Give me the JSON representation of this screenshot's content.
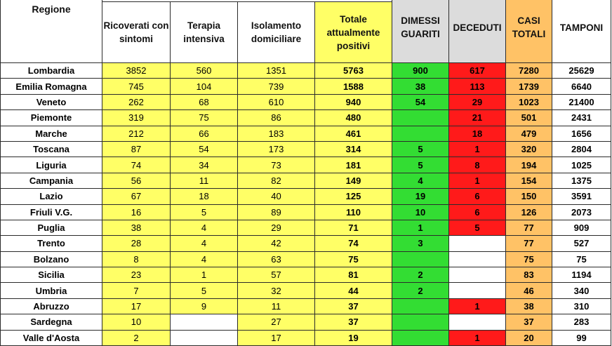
{
  "headers": {
    "regione": "Regione",
    "ricoverati": "Ricoverati con sintomi",
    "terapia": "Terapia intensiva",
    "isolamento": "Isolamento domiciliare",
    "totale": "Totale attualmente positivi",
    "dimessi": "DIMESSI GUARITI",
    "deceduti": "DECEDUTI",
    "casi": "CASI TOTALI",
    "tamponi": "TAMPONI"
  },
  "colors": {
    "yellow": "#ffff66",
    "green": "#33dd33",
    "red": "#ff1a1a",
    "orange": "#ffc266",
    "header_gray": "#dcdcdc"
  },
  "rows": [
    {
      "regione": "Lombardia",
      "ricoverati": "3852",
      "terapia": "560",
      "isolamento": "1351",
      "totale": "5763",
      "dimessi": "900",
      "deceduti": "617",
      "casi": "7280",
      "tamponi": "25629"
    },
    {
      "regione": "Emilia Romagna",
      "ricoverati": "745",
      "terapia": "104",
      "isolamento": "739",
      "totale": "1588",
      "dimessi": "38",
      "deceduti": "113",
      "casi": "1739",
      "tamponi": "6640"
    },
    {
      "regione": "Veneto",
      "ricoverati": "262",
      "terapia": "68",
      "isolamento": "610",
      "totale": "940",
      "dimessi": "54",
      "deceduti": "29",
      "casi": "1023",
      "tamponi": "21400"
    },
    {
      "regione": "Piemonte",
      "ricoverati": "319",
      "terapia": "75",
      "isolamento": "86",
      "totale": "480",
      "dimessi": "",
      "deceduti": "21",
      "casi": "501",
      "tamponi": "2431"
    },
    {
      "regione": "Marche",
      "ricoverati": "212",
      "terapia": "66",
      "isolamento": "183",
      "totale": "461",
      "dimessi": "",
      "deceduti": "18",
      "casi": "479",
      "tamponi": "1656"
    },
    {
      "regione": "Toscana",
      "ricoverati": "87",
      "terapia": "54",
      "isolamento": "173",
      "totale": "314",
      "dimessi": "5",
      "deceduti": "1",
      "casi": "320",
      "tamponi": "2804"
    },
    {
      "regione": "Liguria",
      "ricoverati": "74",
      "terapia": "34",
      "isolamento": "73",
      "totale": "181",
      "dimessi": "5",
      "deceduti": "8",
      "casi": "194",
      "tamponi": "1025"
    },
    {
      "regione": "Campania",
      "ricoverati": "56",
      "terapia": "11",
      "isolamento": "82",
      "totale": "149",
      "dimessi": "4",
      "deceduti": "1",
      "casi": "154",
      "tamponi": "1375"
    },
    {
      "regione": "Lazio",
      "ricoverati": "67",
      "terapia": "18",
      "isolamento": "40",
      "totale": "125",
      "dimessi": "19",
      "deceduti": "6",
      "casi": "150",
      "tamponi": "3591"
    },
    {
      "regione": "Friuli V.G.",
      "ricoverati": "16",
      "terapia": "5",
      "isolamento": "89",
      "totale": "110",
      "dimessi": "10",
      "deceduti": "6",
      "casi": "126",
      "tamponi": "2073"
    },
    {
      "regione": "Puglia",
      "ricoverati": "38",
      "terapia": "4",
      "isolamento": "29",
      "totale": "71",
      "dimessi": "1",
      "deceduti": "5",
      "casi": "77",
      "tamponi": "909"
    },
    {
      "regione": "Trento",
      "ricoverati": "28",
      "terapia": "4",
      "isolamento": "42",
      "totale": "74",
      "dimessi": "3",
      "deceduti": "",
      "casi": "77",
      "tamponi": "527"
    },
    {
      "regione": "Bolzano",
      "ricoverati": "8",
      "terapia": "4",
      "isolamento": "63",
      "totale": "75",
      "dimessi": "",
      "deceduti": "",
      "casi": "75",
      "tamponi": "75"
    },
    {
      "regione": "Sicilia",
      "ricoverati": "23",
      "terapia": "1",
      "isolamento": "57",
      "totale": "81",
      "dimessi": "2",
      "deceduti": "",
      "casi": "83",
      "tamponi": "1194"
    },
    {
      "regione": "Umbria",
      "ricoverati": "7",
      "terapia": "5",
      "isolamento": "32",
      "totale": "44",
      "dimessi": "2",
      "deceduti": "",
      "casi": "46",
      "tamponi": "340"
    },
    {
      "regione": "Abruzzo",
      "ricoverati": "17",
      "terapia": "9",
      "isolamento": "11",
      "totale": "37",
      "dimessi": "",
      "deceduti": "1",
      "casi": "38",
      "tamponi": "310"
    },
    {
      "regione": "Sardegna",
      "ricoverati": "10",
      "terapia": "",
      "isolamento": "27",
      "totale": "37",
      "dimessi": "",
      "deceduti": "",
      "casi": "37",
      "tamponi": "283"
    },
    {
      "regione": "Valle d'Aosta",
      "ricoverati": "2",
      "terapia": "",
      "isolamento": "17",
      "totale": "19",
      "dimessi": "",
      "deceduti": "1",
      "casi": "20",
      "tamponi": "99"
    }
  ]
}
